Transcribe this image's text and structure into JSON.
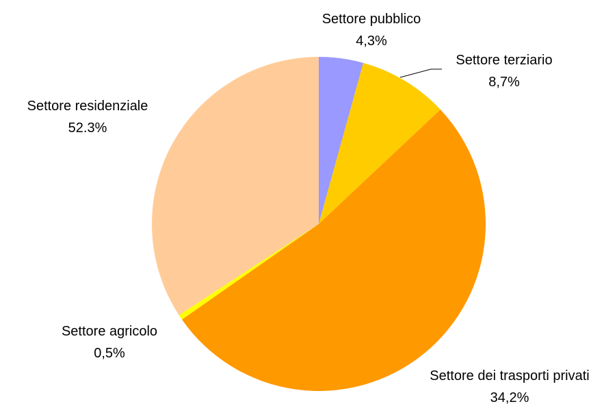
{
  "chart_data": {
    "type": "pie",
    "categories": [
      "Settore pubblico",
      "Settore terziario",
      "Settore residenziale",
      "Settore agricolo",
      "Settore dei trasporti privati"
    ],
    "values": [
      4.3,
      8.7,
      52.3,
      0.5,
      34.2
    ],
    "value_labels": [
      "4,3%",
      "8,7%",
      "52.3%",
      "0,5%",
      "34,2%"
    ],
    "colors": [
      "#9999ff",
      "#ffcc00",
      "#ff9900",
      "#ffff00",
      "#ffcc99"
    ]
  }
}
